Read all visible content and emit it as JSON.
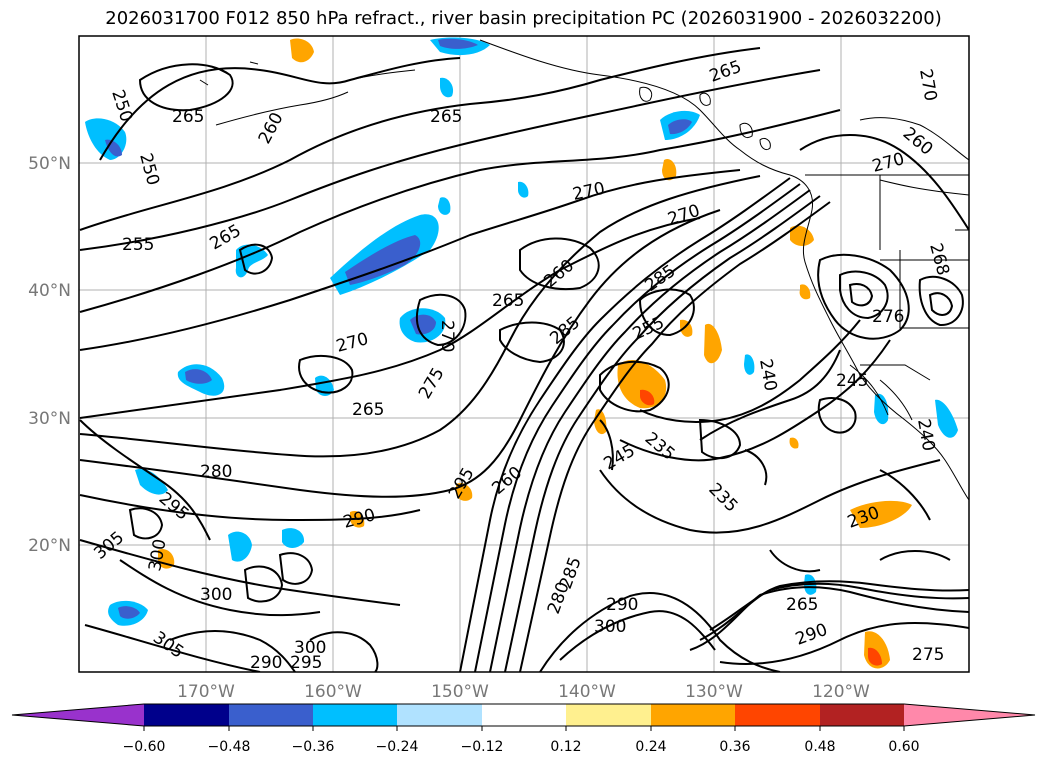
{
  "title": "2026031700 F012 850 hPa refract., river basin precipitation PC (2026031900 - 2026032200)",
  "latitude_labels": [
    "50°N",
    "40°N",
    "30°N",
    "20°N"
  ],
  "longitude_labels": [
    "170°W",
    "160°W",
    "150°W",
    "140°W",
    "130°W",
    "120°W"
  ],
  "colorbar": {
    "colors": [
      "#9932cc",
      "#00008b",
      "#3a5fcd",
      "#00bfff",
      "#b0e2ff",
      "#ffffff",
      "#fff08f",
      "#ffa500",
      "#ff4500",
      "#b22222",
      "#ff88aa"
    ],
    "tick_labels": [
      "−0.60",
      "−0.48",
      "−0.36",
      "−0.24",
      "−0.12",
      "0.12",
      "0.24",
      "0.36",
      "0.48",
      "0.60"
    ]
  },
  "contour_labels": [
    {
      "text": "250"
    },
    {
      "text": "265"
    },
    {
      "text": "260"
    },
    {
      "text": "250"
    },
    {
      "text": "265"
    },
    {
      "text": "255"
    },
    {
      "text": "265"
    },
    {
      "text": "270"
    },
    {
      "text": "270"
    },
    {
      "text": "265"
    },
    {
      "text": "270"
    },
    {
      "text": "260"
    },
    {
      "text": "270"
    },
    {
      "text": "260"
    },
    {
      "text": "265"
    },
    {
      "text": "285"
    },
    {
      "text": "270"
    },
    {
      "text": "270"
    },
    {
      "text": "275"
    },
    {
      "text": "265"
    },
    {
      "text": "285"
    },
    {
      "text": "255"
    },
    {
      "text": "268"
    },
    {
      "text": "276"
    },
    {
      "text": "240"
    },
    {
      "text": "245"
    },
    {
      "text": "245"
    },
    {
      "text": "235"
    },
    {
      "text": "235"
    },
    {
      "text": "240"
    },
    {
      "text": "280"
    },
    {
      "text": "295"
    },
    {
      "text": "295"
    },
    {
      "text": "260"
    },
    {
      "text": "290"
    },
    {
      "text": "305"
    },
    {
      "text": "300"
    },
    {
      "text": "300"
    },
    {
      "text": "285"
    },
    {
      "text": "280"
    },
    {
      "text": "290"
    },
    {
      "text": "300"
    },
    {
      "text": "265"
    },
    {
      "text": "230"
    },
    {
      "text": "290"
    },
    {
      "text": "300"
    },
    {
      "text": "305"
    },
    {
      "text": "290"
    },
    {
      "text": "295"
    },
    {
      "text": "275"
    }
  ]
}
